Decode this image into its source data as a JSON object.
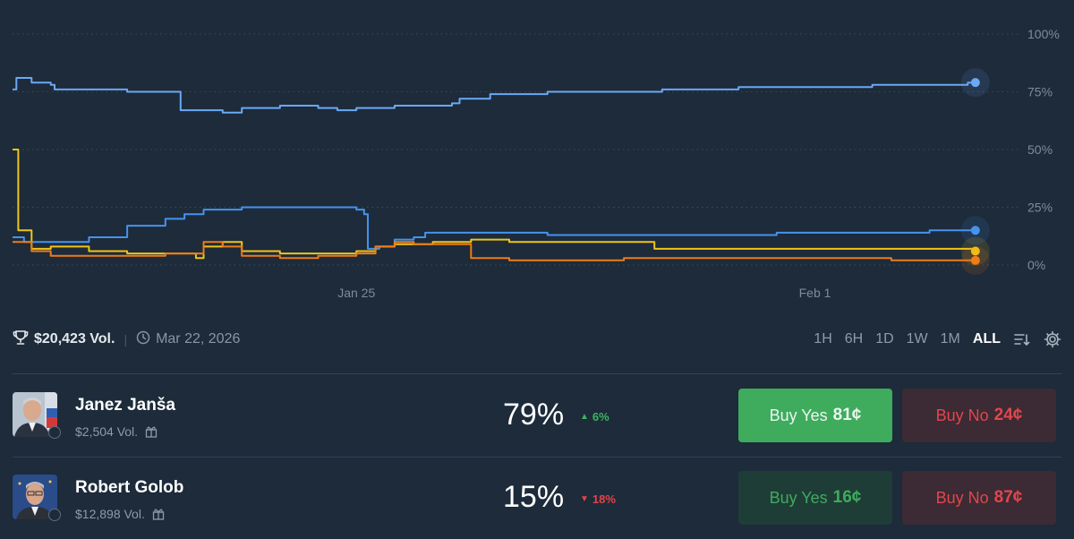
{
  "chart_data": {
    "type": "line",
    "y_ticks": [
      "100%",
      "75%",
      "50%",
      "25%",
      "0%"
    ],
    "x_ticks": [
      "Jan 25",
      "Feb 1"
    ],
    "ylim": [
      0,
      100
    ],
    "grid": true,
    "x_domain_days": [
      0,
      26
    ],
    "x_tick_positions_days": [
      9,
      21
    ],
    "series": [
      {
        "color": "#6ba8f5",
        "values": [
          [
            0,
            76
          ],
          [
            0.1,
            81
          ],
          [
            0.5,
            79
          ],
          [
            1,
            78
          ],
          [
            1.1,
            76
          ],
          [
            2,
            76
          ],
          [
            3,
            75
          ],
          [
            4.2,
            75
          ],
          [
            4.4,
            67
          ],
          [
            5,
            67
          ],
          [
            5.5,
            66
          ],
          [
            6,
            68
          ],
          [
            7,
            69
          ],
          [
            8,
            68
          ],
          [
            8.5,
            67
          ],
          [
            9,
            68
          ],
          [
            10,
            69
          ],
          [
            11,
            69
          ],
          [
            11.5,
            70
          ],
          [
            11.7,
            72
          ],
          [
            12.5,
            74
          ],
          [
            13.5,
            74
          ],
          [
            14,
            75
          ],
          [
            15,
            75
          ],
          [
            16,
            75
          ],
          [
            17,
            76
          ],
          [
            18,
            76
          ],
          [
            19,
            77
          ],
          [
            20,
            77
          ],
          [
            21,
            77
          ],
          [
            22,
            77
          ],
          [
            22.5,
            78
          ],
          [
            23,
            78
          ],
          [
            24,
            78
          ],
          [
            25,
            79
          ],
          [
            25.2,
            79
          ]
        ]
      },
      {
        "color": "#4593ee",
        "values": [
          [
            0,
            12
          ],
          [
            0.3,
            10
          ],
          [
            1,
            10
          ],
          [
            2,
            12
          ],
          [
            3,
            17
          ],
          [
            4,
            20
          ],
          [
            4.5,
            22
          ],
          [
            5,
            24
          ],
          [
            6,
            25
          ],
          [
            7,
            25
          ],
          [
            8,
            25
          ],
          [
            9,
            24
          ],
          [
            9.2,
            22
          ],
          [
            9.3,
            7
          ],
          [
            9.6,
            8
          ],
          [
            10,
            11
          ],
          [
            10.5,
            12
          ],
          [
            10.8,
            14
          ],
          [
            11,
            14
          ],
          [
            12,
            14
          ],
          [
            13,
            14
          ],
          [
            14,
            13
          ],
          [
            16,
            13
          ],
          [
            18,
            13
          ],
          [
            20,
            14
          ],
          [
            22,
            14
          ],
          [
            23,
            14
          ],
          [
            24,
            15
          ],
          [
            25.2,
            15
          ]
        ]
      },
      {
        "color": "#f0c419",
        "values": [
          [
            0,
            50
          ],
          [
            0.15,
            15
          ],
          [
            0.5,
            7
          ],
          [
            1,
            8
          ],
          [
            2,
            6
          ],
          [
            3,
            5
          ],
          [
            4,
            5
          ],
          [
            4.8,
            3
          ],
          [
            5,
            8
          ],
          [
            5.5,
            10
          ],
          [
            6,
            6
          ],
          [
            7,
            5
          ],
          [
            8,
            5
          ],
          [
            9,
            6
          ],
          [
            9.5,
            8
          ],
          [
            10,
            9
          ],
          [
            11,
            10
          ],
          [
            12,
            11
          ],
          [
            13,
            10
          ],
          [
            14,
            10
          ],
          [
            16,
            10
          ],
          [
            16.5,
            10
          ],
          [
            16.8,
            7
          ],
          [
            18,
            7
          ],
          [
            20,
            7
          ],
          [
            22,
            7
          ],
          [
            23,
            7
          ],
          [
            25.2,
            6
          ]
        ]
      },
      {
        "color": "#f07b17",
        "values": [
          [
            0,
            10
          ],
          [
            0.5,
            6
          ],
          [
            1,
            4
          ],
          [
            2,
            4
          ],
          [
            3,
            4
          ],
          [
            4,
            5
          ],
          [
            5,
            10
          ],
          [
            5.5,
            8
          ],
          [
            6,
            4
          ],
          [
            7,
            3
          ],
          [
            8,
            4
          ],
          [
            9,
            5
          ],
          [
            9.5,
            8
          ],
          [
            10,
            10
          ],
          [
            10.5,
            9
          ],
          [
            11,
            9
          ],
          [
            12,
            3
          ],
          [
            13,
            2
          ],
          [
            14,
            2
          ],
          [
            16,
            3
          ],
          [
            18,
            3
          ],
          [
            20,
            3
          ],
          [
            22,
            3
          ],
          [
            23,
            2
          ],
          [
            24,
            2
          ],
          [
            25.2,
            2
          ]
        ]
      }
    ]
  },
  "stats": {
    "volume": "$20,423 Vol.",
    "date": "Mar 22, 2026"
  },
  "ranges": [
    "1H",
    "6H",
    "1D",
    "1W",
    "1M",
    "ALL"
  ],
  "active_range": "ALL",
  "candidates": [
    {
      "name": "Janez Janša",
      "volume": "$2,504 Vol.",
      "percent": "79%",
      "delta": "6%",
      "delta_dir": "up",
      "buy_yes_label": "Buy Yes",
      "buy_yes_price": "81¢",
      "buy_no_label": "Buy No",
      "buy_no_price": "24¢"
    },
    {
      "name": "Robert Golob",
      "volume": "$12,898 Vol.",
      "percent": "15%",
      "delta": "18%",
      "delta_dir": "down",
      "buy_yes_label": "Buy Yes",
      "buy_yes_price": "16¢",
      "buy_no_label": "Buy No",
      "buy_no_price": "87¢"
    }
  ]
}
